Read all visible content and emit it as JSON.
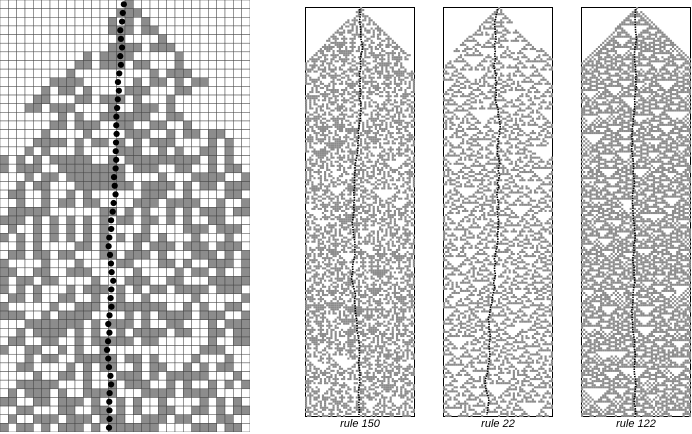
{
  "figure": {
    "panels": [
      {
        "caption": "rule 150",
        "rule": 150,
        "seed": 7,
        "wobble": 1.0
      },
      {
        "caption": "rule 22",
        "rule": 22,
        "seed": 19,
        "wobble": 1.3
      },
      {
        "caption": "rule 122",
        "rule": 122,
        "seed": 31,
        "wobble": 0.8
      }
    ],
    "colors": {
      "cell_on": "#8c8c8c",
      "cell_off": "#ffffff",
      "grid": "#444444",
      "marker": "#000000"
    }
  }
}
